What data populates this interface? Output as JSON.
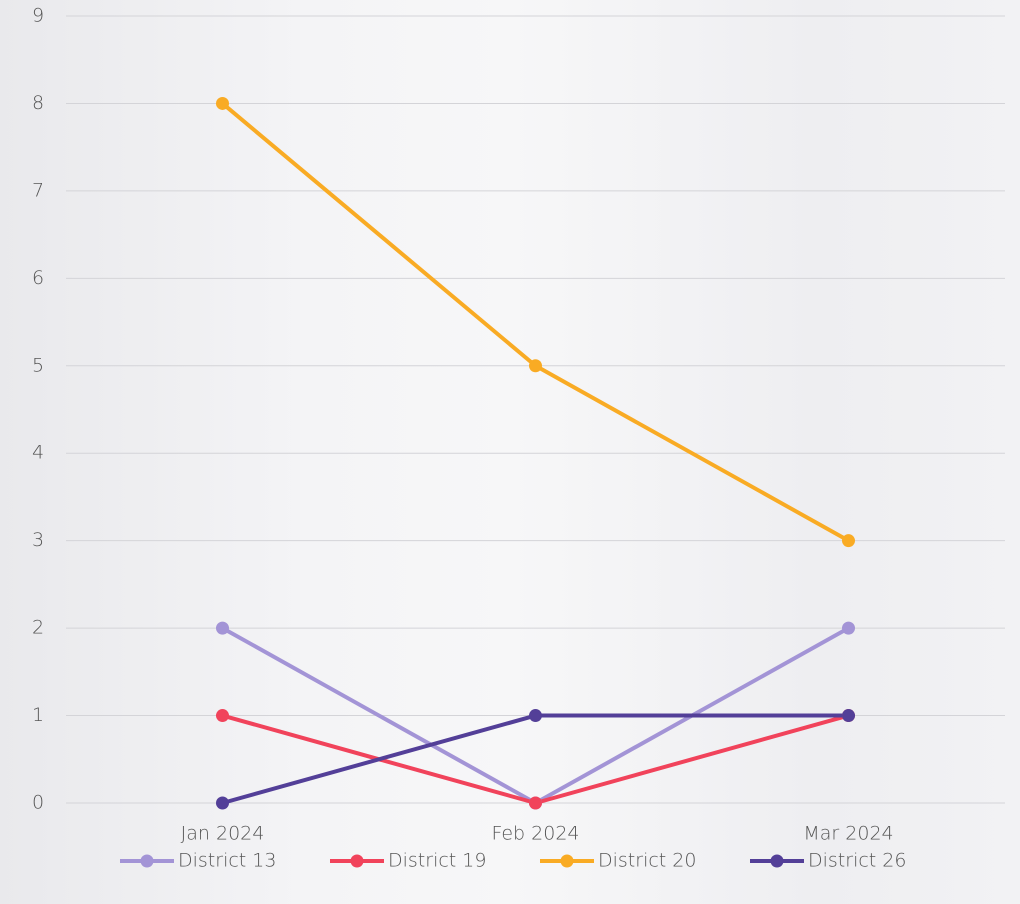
{
  "chart_data": {
    "type": "line",
    "categories": [
      "Jan 2024",
      "Feb 2024",
      "Mar 2024"
    ],
    "series": [
      {
        "name": "District 13",
        "color": "#a394d6",
        "values": [
          2,
          0,
          2
        ]
      },
      {
        "name": "District 19",
        "color": "#f1435b",
        "values": [
          1,
          0,
          1
        ]
      },
      {
        "name": "District 20",
        "color": "#f9ab24",
        "values": [
          8,
          5,
          3
        ]
      },
      {
        "name": "District 26",
        "color": "#533f98",
        "values": [
          0,
          1,
          1
        ]
      }
    ],
    "ylim": [
      0,
      9
    ],
    "yticks": [
      0,
      1,
      2,
      3,
      4,
      5,
      6,
      7,
      8,
      9
    ],
    "grid": true,
    "legend": "bottom"
  }
}
